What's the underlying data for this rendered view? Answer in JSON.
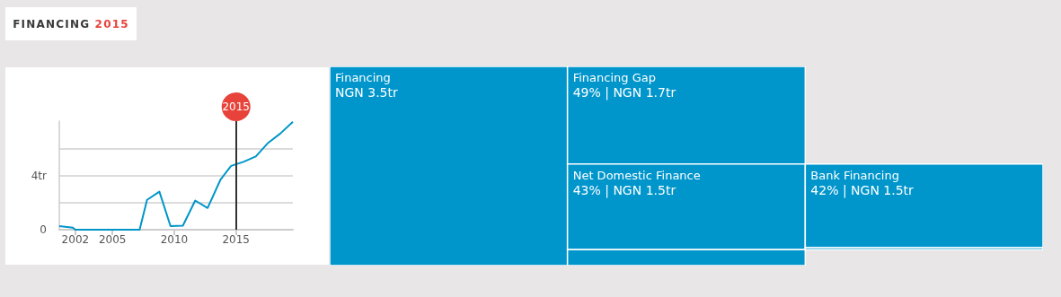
{
  "chart_data": [
    {
      "type": "line",
      "title": "FINANCING 2015",
      "color": "#0096c8",
      "marker": "none",
      "grid": "y",
      "x": [
        2000.7,
        2001.8,
        2002.0,
        2007.2,
        2007.8,
        2008.8,
        2009.7,
        2010.7,
        2011.7,
        2012.7,
        2013.75,
        2014.6,
        2015.6,
        2016.6,
        2017.6,
        2018.6,
        2019.6
      ],
      "values": [
        0.26,
        0.15,
        0,
        0,
        2.2,
        2.8,
        0.26,
        0.3,
        2.15,
        1.6,
        3.7,
        4.7,
        5.0,
        5.4,
        6.4,
        7.1,
        7.95
      ],
      "xlim": [
        2000.7,
        2019.6
      ],
      "xticks": [
        2002,
        2005,
        2010,
        2015
      ],
      "ylim": [
        0,
        8
      ],
      "yticks": [
        0,
        {
          "value": 2,
          "label": null
        },
        {
          "value": 4,
          "label": "4tr"
        },
        {
          "value": 6,
          "label": null
        }
      ],
      "ref_lines": [
        {
          "axis": "x",
          "value": 2015,
          "label": "2015",
          "color": "#333333"
        }
      ]
    },
    {
      "type": "other",
      "color": "#0096cc",
      "categories": [
        "Financing",
        "Financing Gap",
        "Net Domestic Finance",
        null,
        "Bank Financing",
        null
      ],
      "values": [
        null,
        49,
        43,
        null,
        42,
        null
      ],
      "value_labels": [
        "NGN 3.5tr",
        "49% | NGN 1.7tr",
        "43% | NGN 1.5tr",
        null,
        "42% | NGN 1.5tr",
        null
      ]
    }
  ]
}
